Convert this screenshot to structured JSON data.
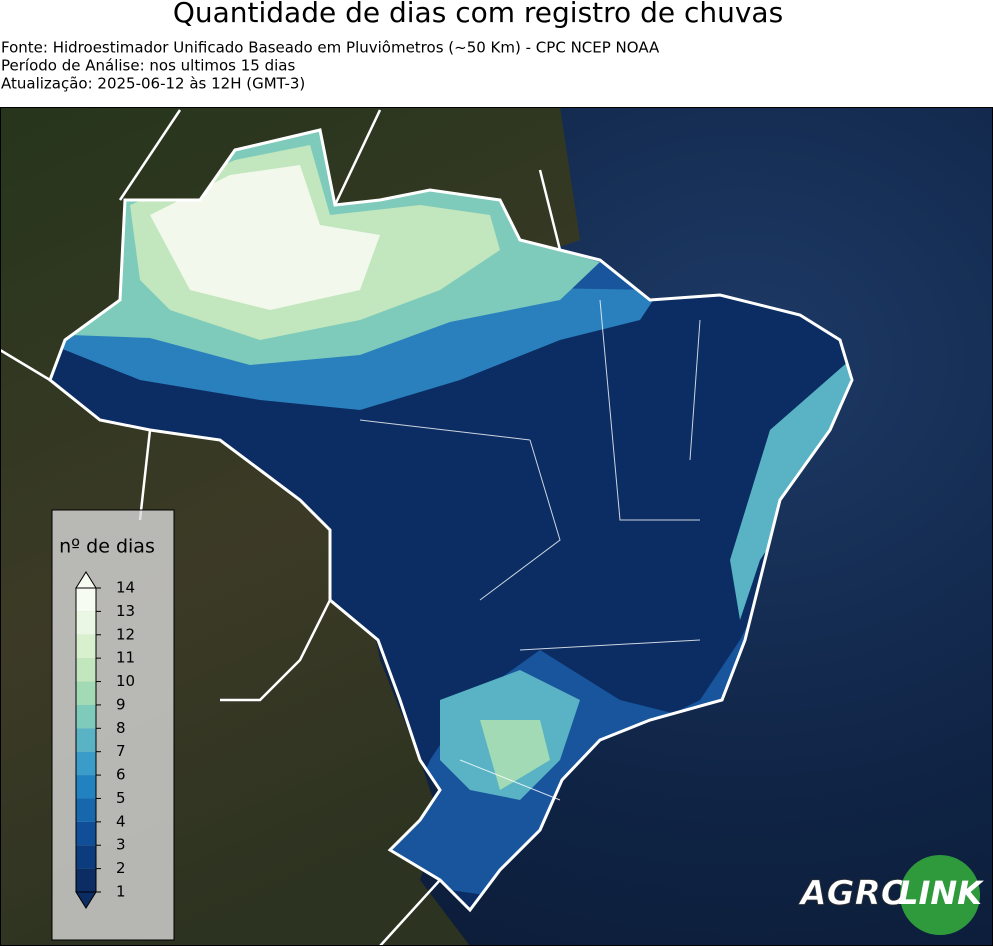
{
  "header": {
    "title": "Quantidade de dias com registro de chuvas",
    "lines": [
      "Fonte: Hidroestimador Unificado Baseado em Pluviômetros (~50 Km) - CPC NCEP NOAA",
      "Período de Análise: nos ultimos 15 dias",
      "Atualização: 2025-06-12 às 12H (GMT-3)"
    ]
  },
  "legend": {
    "title": "nº de dias",
    "ticks": [
      1,
      2,
      3,
      4,
      5,
      6,
      7,
      8,
      9,
      10,
      11,
      12,
      13,
      14
    ],
    "colors": [
      "#0b2d63",
      "#0c3c7e",
      "#104f97",
      "#1767ad",
      "#2182bf",
      "#3a9cc8",
      "#59b3c5",
      "#7ecbbb",
      "#a2dab5",
      "#c2e6bd",
      "#d9f0cf",
      "#eaf7e3",
      "#f7fcf2"
    ]
  },
  "logo": {
    "left": "AGRO",
    "right": "LINK"
  }
}
